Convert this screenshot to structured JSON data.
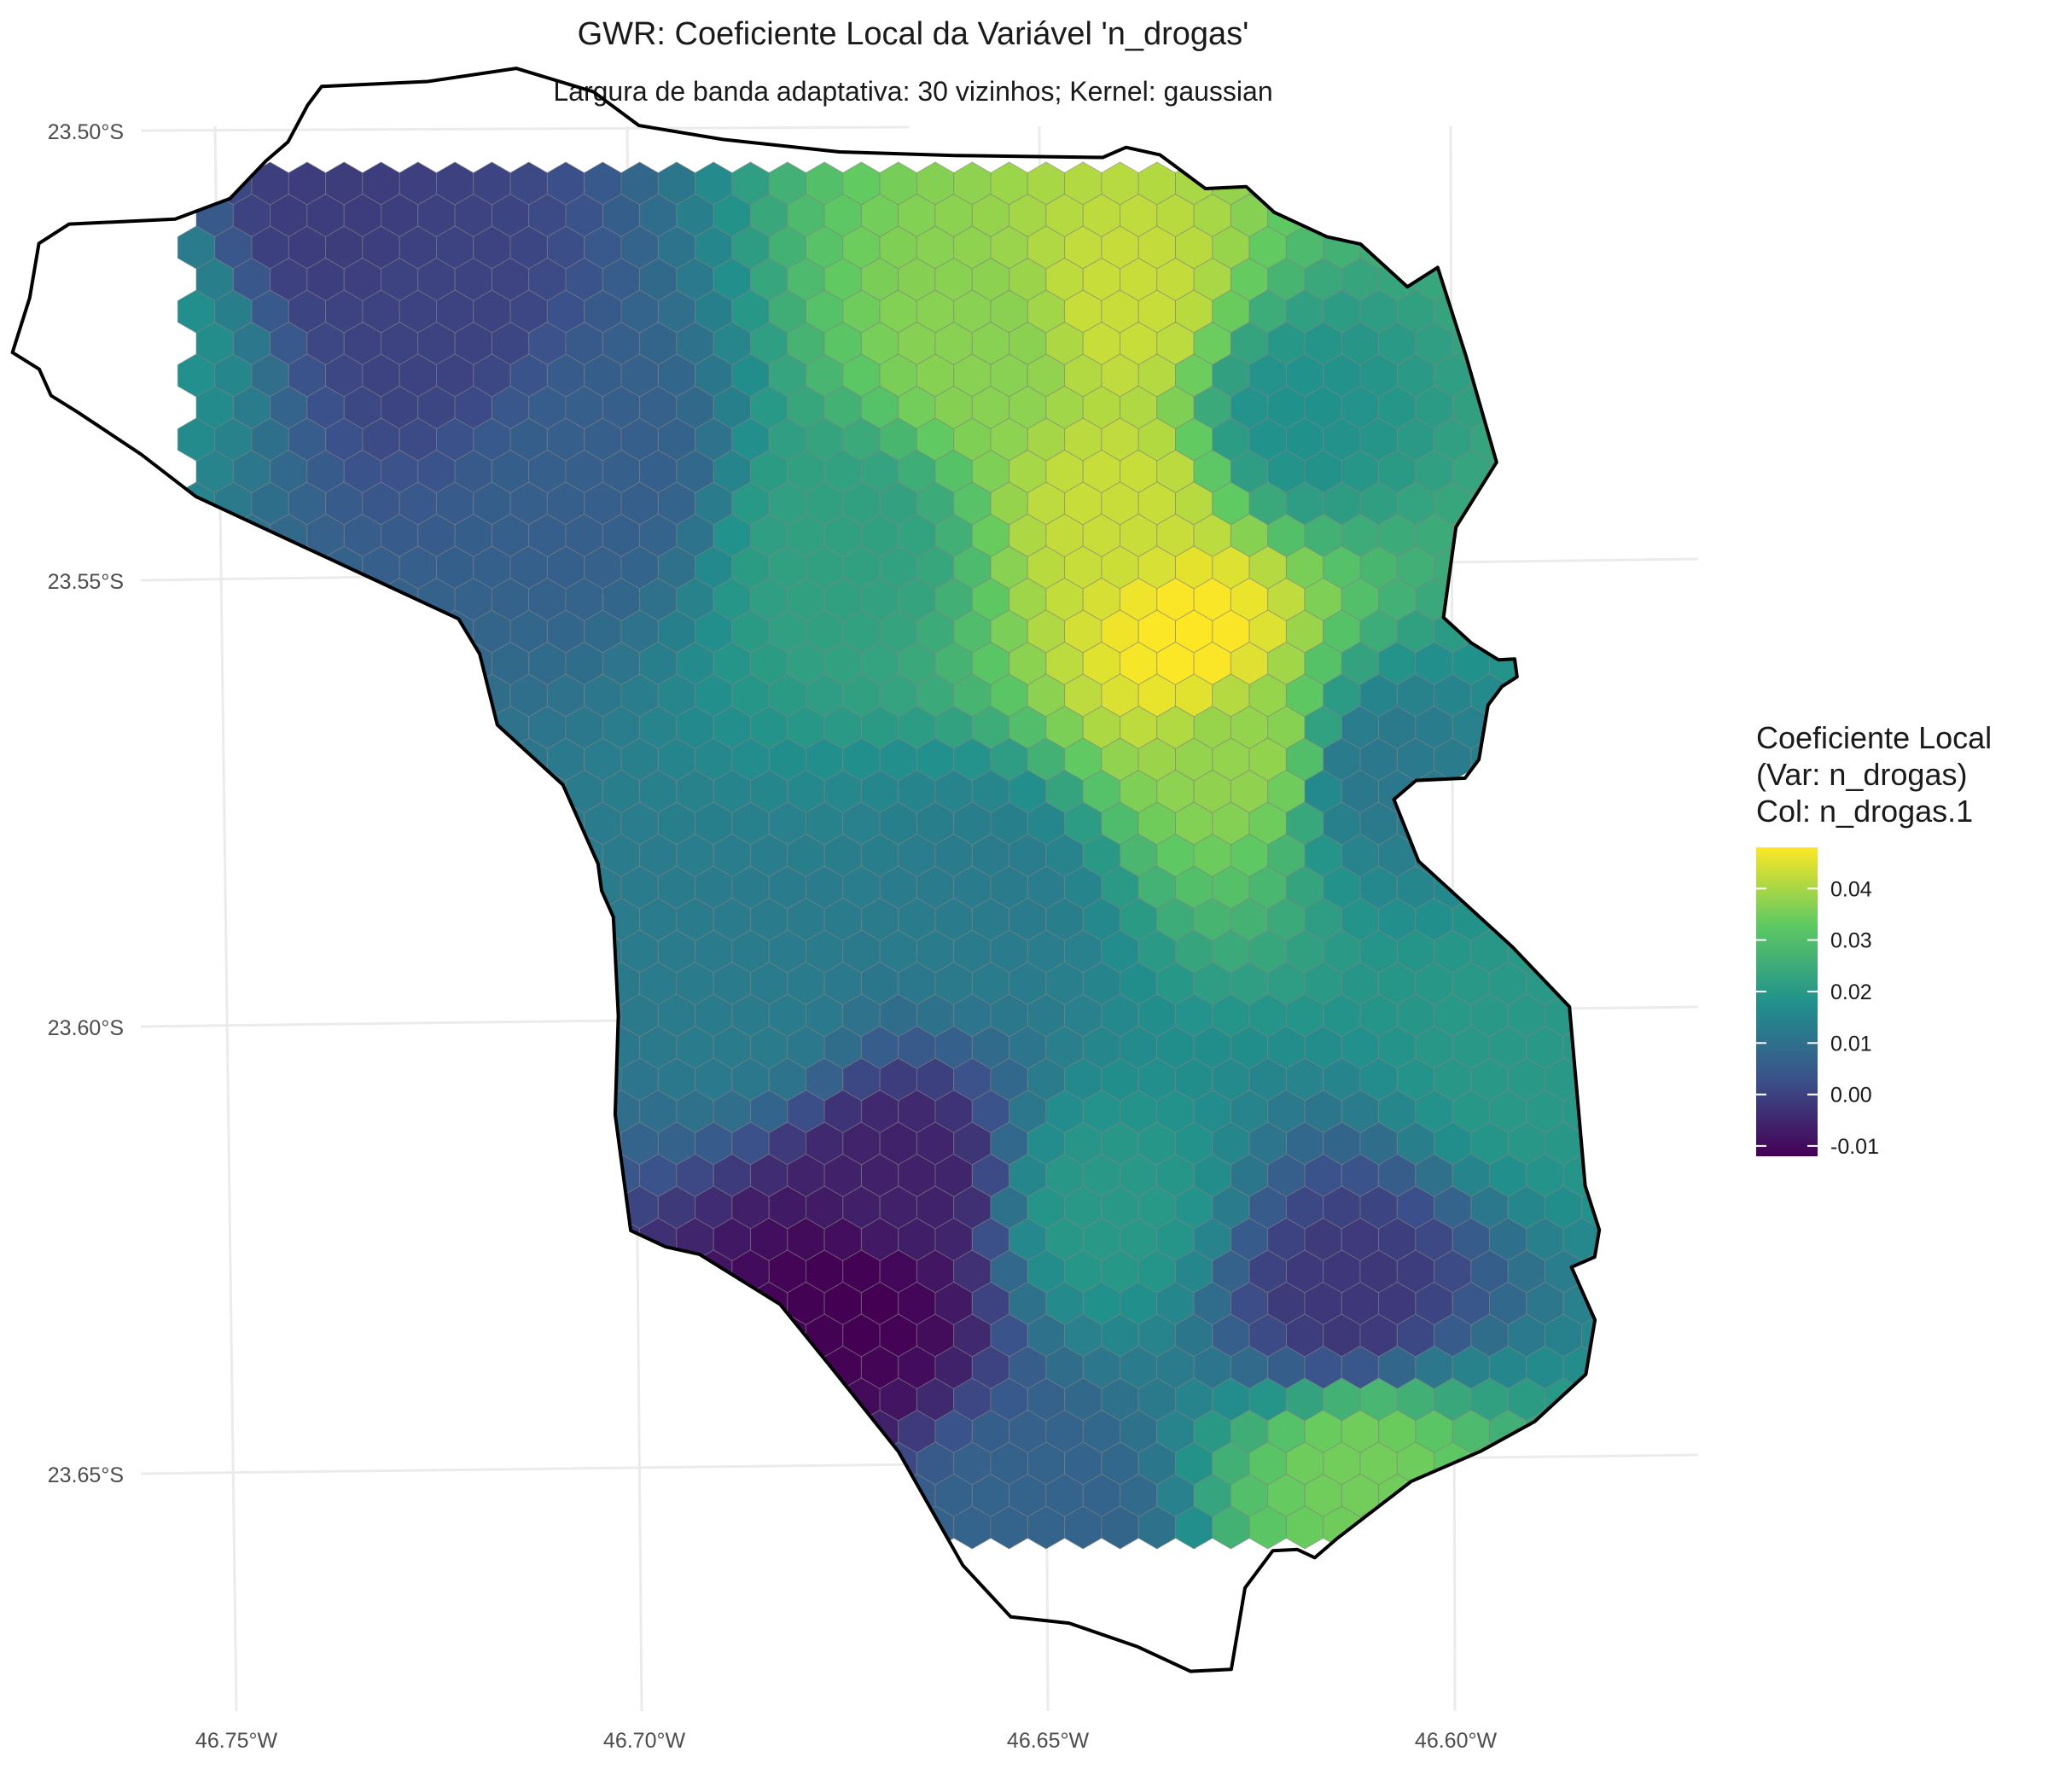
{
  "title": "GWR: Coeficiente Local da Variável 'n_drogas'",
  "subtitle": "Largura de banda adaptativa: 30 vizinhos; Kernel: gaussian",
  "axes": {
    "x_ticks": [
      "46.75°W",
      "46.70°W",
      "46.65°W",
      "46.60°W"
    ],
    "y_ticks": [
      "23.50°S",
      "23.55°S",
      "23.60°S",
      "23.65°S"
    ],
    "x_range": [
      -46.76,
      -46.575
    ],
    "y_range": [
      -23.68,
      -23.495
    ],
    "grid": true
  },
  "legend": {
    "title_lines": [
      "Coeficiente Local",
      "(Var: n_drogas)",
      "Col: n_drogas.1"
    ],
    "labels": [
      "0.04",
      "0.03",
      "0.02",
      "0.01",
      "0.00",
      "-0.01"
    ],
    "values": [
      0.04,
      0.03,
      0.02,
      0.01,
      0.0,
      -0.01
    ],
    "range": [
      -0.012,
      0.048
    ],
    "palette": "viridis",
    "colors": [
      "#440154",
      "#3b528b",
      "#21918c",
      "#5ec962",
      "#fde725"
    ]
  },
  "chart_data": {
    "type": "heatmap",
    "geometry": "hexagonal grid",
    "variable": "n_drogas",
    "title": "GWR: Coeficiente Local da Variável 'n_drogas'",
    "subtitle": "Largura de banda adaptativa: 30 vizinhos; Kernel: gaussian",
    "value_range": [
      -0.012,
      0.048
    ],
    "boundary_lonlat": [
      [
        -46.759,
        -23.524
      ],
      [
        -46.756,
        -23.518
      ],
      [
        -46.754,
        -23.512
      ],
      [
        -46.75,
        -23.51
      ],
      [
        -46.737,
        -23.51
      ],
      [
        -46.73,
        -23.508
      ],
      [
        -46.725,
        -23.504
      ],
      [
        -46.722,
        -23.502
      ],
      [
        -46.719,
        -23.498
      ],
      [
        -46.717,
        -23.496
      ],
      [
        -46.704,
        -23.496
      ],
      [
        -46.693,
        -23.495
      ],
      [
        -46.687,
        -23.497
      ],
      [
        -46.684,
        -23.498
      ],
      [
        -46.679,
        -23.502
      ],
      [
        -46.669,
        -23.504
      ],
      [
        -46.655,
        -23.506
      ],
      [
        -46.641,
        -23.507
      ],
      [
        -46.623,
        -23.508
      ],
      [
        -46.62,
        -23.507
      ],
      [
        -46.616,
        -23.508
      ],
      [
        -46.611,
        -23.512
      ],
      [
        -46.606,
        -23.512
      ],
      [
        -46.603,
        -23.515
      ],
      [
        -46.597,
        -23.518
      ],
      [
        -46.593,
        -23.519
      ],
      [
        -46.588,
        -23.524
      ],
      [
        -46.584,
        -23.522
      ],
      [
        -46.582,
        -23.532
      ],
      [
        -46.58,
        -23.544
      ],
      [
        -46.586,
        -23.551
      ],
      [
        -46.589,
        -23.561
      ],
      [
        -46.586,
        -23.564
      ],
      [
        -46.583,
        -23.566
      ],
      [
        -46.581,
        -23.566
      ],
      [
        -46.581,
        -23.568
      ],
      [
        -46.583,
        -23.569
      ],
      [
        -46.585,
        -23.571
      ],
      [
        -46.587,
        -23.577
      ],
      [
        -46.589,
        -23.579
      ],
      [
        -46.595,
        -23.579
      ],
      [
        -46.598,
        -23.581
      ],
      [
        -46.596,
        -23.588
      ],
      [
        -46.586,
        -23.598
      ],
      [
        -46.58,
        -23.605
      ],
      [
        -46.581,
        -23.625
      ],
      [
        -46.58,
        -23.63
      ],
      [
        -46.581,
        -23.633
      ],
      [
        -46.584,
        -23.634
      ],
      [
        -46.582,
        -23.64
      ],
      [
        -46.584,
        -23.646
      ],
      [
        -46.591,
        -23.651
      ],
      [
        -46.598,
        -23.654
      ],
      [
        -46.607,
        -23.657
      ],
      [
        -46.617,
        -23.663
      ],
      [
        -46.62,
        -23.665
      ],
      [
        -46.622,
        -23.664
      ],
      [
        -46.625,
        -23.664
      ],
      [
        -46.629,
        -23.668
      ],
      [
        -46.632,
        -23.677
      ],
      [
        -46.637,
        -23.677
      ],
      [
        -46.643,
        -23.674
      ],
      [
        -46.651,
        -23.671
      ],
      [
        -46.658,
        -23.67
      ],
      [
        -46.663,
        -23.664
      ],
      [
        -46.669,
        -23.651
      ],
      [
        -46.676,
        -23.641
      ],
      [
        -46.681,
        -23.634
      ],
      [
        -46.687,
        -23.63
      ],
      [
        -46.69,
        -23.628
      ],
      [
        -46.694,
        -23.627
      ],
      [
        -46.698,
        -23.625
      ],
      [
        -46.698,
        -23.612
      ],
      [
        -46.696,
        -23.601
      ],
      [
        -46.695,
        -23.59
      ],
      [
        -46.696,
        -23.587
      ],
      [
        -46.696,
        -23.584
      ],
      [
        -46.699,
        -23.575
      ],
      [
        -46.703,
        -23.571
      ],
      [
        -46.706,
        -23.568
      ],
      [
        -46.707,
        -23.56
      ],
      [
        -46.709,
        -23.556
      ],
      [
        -46.719,
        -23.551
      ],
      [
        -46.731,
        -23.545
      ],
      [
        -46.739,
        -23.541
      ],
      [
        -46.745,
        -23.536
      ],
      [
        -46.752,
        -23.531
      ],
      [
        -46.755,
        -23.529
      ],
      [
        -46.756,
        -23.526
      ]
    ],
    "coefficient_surface": [
      {
        "lon": -46.623,
        "lat": -23.525,
        "value": 0.043
      },
      {
        "lon": -46.62,
        "lat": -23.562,
        "value": 0.048
      },
      {
        "lon": -46.626,
        "lat": -23.547,
        "value": 0.043
      },
      {
        "lon": -46.64,
        "lat": -23.529,
        "value": 0.037
      },
      {
        "lon": -46.615,
        "lat": -23.575,
        "value": 0.038
      },
      {
        "lon": -46.613,
        "lat": -23.655,
        "value": 0.035
      },
      {
        "lon": -46.66,
        "lat": -23.549,
        "value": 0.022
      },
      {
        "lon": -46.604,
        "lat": -23.538,
        "value": 0.018
      },
      {
        "lon": -46.6,
        "lat": -23.578,
        "value": 0.012
      },
      {
        "lon": -46.672,
        "lat": -23.634,
        "value": -0.012
      },
      {
        "lon": -46.665,
        "lat": -23.622,
        "value": -0.006
      },
      {
        "lon": -46.612,
        "lat": -23.637,
        "value": -0.002
      },
      {
        "lon": -46.718,
        "lat": -23.511,
        "value": -0.001
      },
      {
        "lon": -46.708,
        "lat": -23.522,
        "value": 0.0
      },
      {
        "lon": -46.743,
        "lat": -23.523,
        "value": 0.018
      },
      {
        "lon": -46.69,
        "lat": -23.54,
        "value": 0.006
      },
      {
        "lon": -46.68,
        "lat": -23.6,
        "value": 0.013
      },
      {
        "lon": -46.64,
        "lat": -23.625,
        "value": 0.02
      },
      {
        "lon": -46.65,
        "lat": -23.59,
        "value": 0.013
      },
      {
        "lon": -46.585,
        "lat": -23.61,
        "value": 0.02
      },
      {
        "lon": -46.655,
        "lat": -23.66,
        "value": 0.007
      }
    ]
  }
}
